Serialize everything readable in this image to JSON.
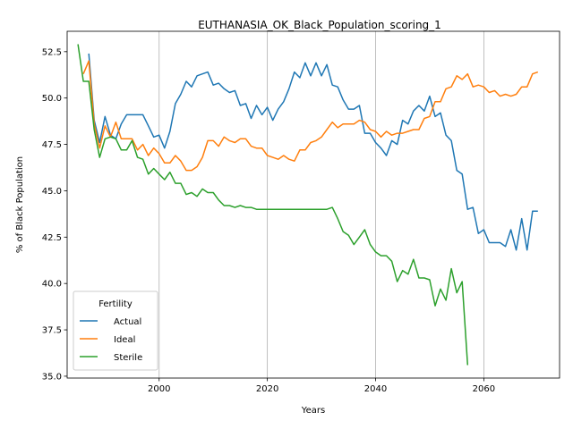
{
  "chart_data": {
    "type": "line",
    "title": "EUTHANASIA_OK_Black_Population_scoring_1",
    "xlabel": "Years",
    "ylabel": "% of Black Population",
    "xlim": [
      1983,
      2074
    ],
    "ylim": [
      34.9,
      53.6
    ],
    "xticks": [
      2000,
      2020,
      2040,
      2060
    ],
    "yticks": [
      35.0,
      37.5,
      40.0,
      42.5,
      45.0,
      47.5,
      50.0,
      52.5
    ],
    "grid": "x-only",
    "legend": {
      "title": "Fertility",
      "position": "lower-left"
    },
    "series": [
      {
        "name": "Actual",
        "color": "#1f77b4",
        "x": [
          1987,
          1988,
          1989,
          1990,
          1991,
          1992,
          1993,
          1994,
          1995,
          1996,
          1997,
          1998,
          1999,
          2000,
          2001,
          2002,
          2003,
          2004,
          2005,
          2006,
          2007,
          2008,
          2009,
          2010,
          2011,
          2012,
          2013,
          2014,
          2015,
          2016,
          2017,
          2018,
          2019,
          2020,
          2021,
          2022,
          2023,
          2024,
          2025,
          2026,
          2027,
          2028,
          2029,
          2030,
          2031,
          2032,
          2033,
          2034,
          2035,
          2036,
          2037,
          2038,
          2039,
          2040,
          2041,
          2042,
          2043,
          2044,
          2045,
          2046,
          2047,
          2048,
          2049,
          2050,
          2051,
          2052,
          2053,
          2054,
          2055,
          2056,
          2057,
          2058,
          2059,
          2060,
          2061,
          2062,
          2063,
          2064,
          2065,
          2066,
          2067,
          2068,
          2069,
          2070
        ],
        "values": [
          52.4,
          48.8,
          47.6,
          49.0,
          48.0,
          47.8,
          48.6,
          49.1,
          49.1,
          49.1,
          49.1,
          48.5,
          47.9,
          48.0,
          47.3,
          48.2,
          49.7,
          50.2,
          50.9,
          50.6,
          51.2,
          51.3,
          51.4,
          50.7,
          50.8,
          50.5,
          50.3,
          50.4,
          49.6,
          49.7,
          48.9,
          49.6,
          49.1,
          49.5,
          48.8,
          49.4,
          49.8,
          50.5,
          51.4,
          51.1,
          51.9,
          51.2,
          51.9,
          51.2,
          51.8,
          50.7,
          50.6,
          49.9,
          49.4,
          49.4,
          49.6,
          48.1,
          48.1,
          47.6,
          47.3,
          46.9,
          47.7,
          47.5,
          48.8,
          48.6,
          49.3,
          49.6,
          49.3,
          50.1,
          49.0,
          49.2,
          48.0,
          47.7,
          46.1,
          45.9,
          44.0,
          44.1,
          42.7,
          42.9,
          42.2,
          42.2,
          42.2,
          42.0,
          42.9,
          41.8,
          43.5,
          41.8,
          43.9,
          43.9
        ]
      },
      {
        "name": "Ideal",
        "color": "#ff7f0e",
        "x": [
          1986,
          1987,
          1988,
          1989,
          1990,
          1991,
          1992,
          1993,
          1994,
          1995,
          1996,
          1997,
          1998,
          1999,
          2000,
          2001,
          2002,
          2003,
          2004,
          2005,
          2006,
          2007,
          2008,
          2009,
          2010,
          2011,
          2012,
          2013,
          2014,
          2015,
          2016,
          2017,
          2018,
          2019,
          2020,
          2021,
          2022,
          2023,
          2024,
          2025,
          2026,
          2027,
          2028,
          2029,
          2030,
          2031,
          2032,
          2033,
          2034,
          2035,
          2036,
          2037,
          2038,
          2039,
          2040,
          2041,
          2042,
          2043,
          2044,
          2045,
          2046,
          2047,
          2048,
          2049,
          2050,
          2051,
          2052,
          2053,
          2054,
          2055,
          2056,
          2057,
          2058,
          2059,
          2060,
          2061,
          2062,
          2063,
          2064,
          2065,
          2066,
          2067,
          2068,
          2069,
          2070
        ],
        "values": [
          51.3,
          52.0,
          48.6,
          47.3,
          48.5,
          47.9,
          48.7,
          47.8,
          47.8,
          47.8,
          47.2,
          47.5,
          46.9,
          47.3,
          47.0,
          46.5,
          46.5,
          46.9,
          46.6,
          46.1,
          46.1,
          46.3,
          46.8,
          47.7,
          47.7,
          47.4,
          47.9,
          47.7,
          47.6,
          47.8,
          47.8,
          47.4,
          47.3,
          47.3,
          46.9,
          46.8,
          46.7,
          46.9,
          46.7,
          46.6,
          47.2,
          47.2,
          47.6,
          47.7,
          47.9,
          48.3,
          48.7,
          48.4,
          48.6,
          48.6,
          48.6,
          48.8,
          48.7,
          48.3,
          48.2,
          47.9,
          48.2,
          48.0,
          48.1,
          48.1,
          48.2,
          48.3,
          48.3,
          48.9,
          49.0,
          49.8,
          49.8,
          50.5,
          50.6,
          51.2,
          51.0,
          51.3,
          50.6,
          50.7,
          50.6,
          50.3,
          50.4,
          50.1,
          50.2,
          50.1,
          50.2,
          50.6,
          50.6,
          51.3,
          51.4
        ]
      },
      {
        "name": "Sterile",
        "color": "#2ca02c",
        "x": [
          1985,
          1986,
          1987,
          1988,
          1989,
          1990,
          1991,
          1992,
          1993,
          1994,
          1995,
          1996,
          1997,
          1998,
          1999,
          2000,
          2001,
          2002,
          2003,
          2004,
          2005,
          2006,
          2007,
          2008,
          2009,
          2010,
          2011,
          2012,
          2013,
          2014,
          2015,
          2016,
          2017,
          2018,
          2019,
          2020,
          2021,
          2022,
          2023,
          2024,
          2025,
          2026,
          2027,
          2028,
          2029,
          2030,
          2031,
          2032,
          2033,
          2034,
          2035,
          2036,
          2037,
          2038,
          2039,
          2040,
          2041,
          2042,
          2043,
          2044,
          2045,
          2046,
          2047,
          2048,
          2049,
          2050,
          2051,
          2052,
          2053,
          2054,
          2055,
          2056,
          2057
        ],
        "values": [
          52.9,
          50.9,
          50.9,
          48.3,
          46.8,
          47.8,
          47.9,
          47.8,
          47.2,
          47.2,
          47.7,
          46.8,
          46.7,
          45.9,
          46.2,
          45.9,
          45.6,
          46.0,
          45.4,
          45.4,
          44.8,
          44.9,
          44.7,
          45.1,
          44.9,
          44.9,
          44.5,
          44.2,
          44.2,
          44.1,
          44.2,
          44.1,
          44.1,
          44.0,
          44.0,
          44.0,
          44.0,
          44.0,
          44.0,
          44.0,
          44.0,
          44.0,
          44.0,
          44.0,
          44.0,
          44.0,
          44.0,
          44.1,
          43.5,
          42.8,
          42.6,
          42.1,
          42.5,
          42.9,
          42.1,
          41.7,
          41.5,
          41.5,
          41.2,
          40.1,
          40.7,
          40.5,
          41.3,
          40.3,
          40.3,
          40.2,
          38.8,
          39.7,
          39.1,
          40.8,
          39.5,
          40.1,
          35.6
        ]
      }
    ]
  }
}
